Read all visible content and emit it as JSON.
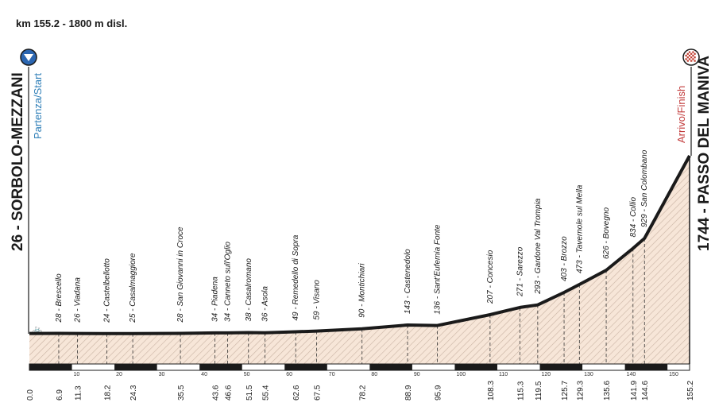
{
  "header": {
    "summary": "km 155.2 - 1800 m disl."
  },
  "start": {
    "label": "26 - SORBOLO-MEZZANI",
    "tag": "Partenza/Start"
  },
  "finish": {
    "label": "1744 - PASSO DEL MANIVA",
    "tag": "Arrivo/Finish"
  },
  "colors": {
    "fill": "#f7e6d8",
    "hatch": "#c9b3a3",
    "profile": "#1a1a1a",
    "start_icon": "#2b66b1",
    "finish_icon": "#c0392b"
  },
  "chart_data": {
    "type": "area",
    "xlim": [
      0,
      155.2
    ],
    "x_ticks": [
      10,
      20,
      30,
      40,
      50,
      60,
      70,
      80,
      90,
      100,
      110,
      120,
      130,
      140,
      150
    ],
    "waypoints": [
      {
        "km": 0.0,
        "km_label": "0.0",
        "alt": 26,
        "label": ""
      },
      {
        "km": 6.9,
        "km_label": "6.9",
        "alt": 28,
        "label": "28 - Brescello"
      },
      {
        "km": 11.3,
        "km_label": "11.3",
        "alt": 26,
        "label": "26 - Viadana"
      },
      {
        "km": 18.2,
        "km_label": "18.2",
        "alt": 24,
        "label": "24 - Castelbellotto"
      },
      {
        "km": 24.3,
        "km_label": "24.3",
        "alt": 25,
        "label": "25 - Casalmaggiore"
      },
      {
        "km": 35.5,
        "km_label": "35.5",
        "alt": 28,
        "label": "28 - San Giovanni in Croce"
      },
      {
        "km": 43.6,
        "km_label": "43.6",
        "alt": 34,
        "label": "34 - Piadena"
      },
      {
        "km": 46.6,
        "km_label": "46.6",
        "alt": 34,
        "label": "34 - Canneto sull'Oglio"
      },
      {
        "km": 51.5,
        "km_label": "51.5",
        "alt": 38,
        "label": "38 - Casalromano"
      },
      {
        "km": 55.4,
        "km_label": "55.4",
        "alt": 36,
        "label": "36 - Asola"
      },
      {
        "km": 62.6,
        "km_label": "62.6",
        "alt": 49,
        "label": "49 - Remedello di Sopra"
      },
      {
        "km": 67.5,
        "km_label": "67.5",
        "alt": 59,
        "label": "59 - Visano"
      },
      {
        "km": 78.2,
        "km_label": "78.2",
        "alt": 90,
        "label": "90 - Montichiari"
      },
      {
        "km": 88.9,
        "km_label": "88.9",
        "alt": 143,
        "label": "143 - Castenedolo"
      },
      {
        "km": 95.9,
        "km_label": "95.9",
        "alt": 136,
        "label": "136 - Sant'Eufemia Fonte"
      },
      {
        "km": 108.3,
        "km_label": "108.3",
        "alt": 207,
        "label": "207 - Concesio"
      },
      {
        "km": 115.3,
        "km_label": "115.3",
        "alt": 271,
        "label": "271 - Sarezzo"
      },
      {
        "km": 119.5,
        "km_label": "119.5",
        "alt": 293,
        "label": "293 - Gardone Val Trompia"
      },
      {
        "km": 125.7,
        "km_label": "125.7",
        "alt": 403,
        "label": "403 - Brozzo"
      },
      {
        "km": 129.3,
        "km_label": "129.3",
        "alt": 473,
        "label": "473 - Tavernole sul Mella"
      },
      {
        "km": 135.6,
        "km_label": "135.6",
        "alt": 626,
        "label": "626 - Bovegno"
      },
      {
        "km": 141.9,
        "km_label": "141.9",
        "alt": 834,
        "label": "834 - Collio"
      },
      {
        "km": 144.6,
        "km_label": "144.6",
        "alt": 929,
        "label": "929 - San Colombano"
      },
      {
        "km": 155.2,
        "km_label": "155.2",
        "alt": 1744,
        "label": ""
      }
    ]
  }
}
